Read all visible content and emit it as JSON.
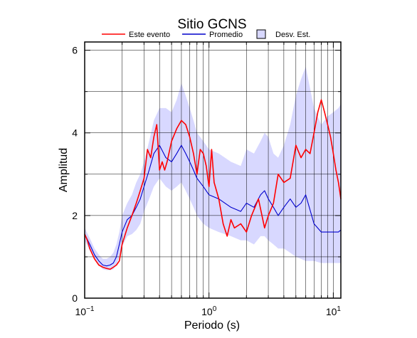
{
  "chart_data": {
    "type": "line",
    "title": "Sitio GCNS",
    "xlabel": "Periodo (s)",
    "ylabel": "Amplitud",
    "x_scale": "log",
    "xlim": [
      0.1,
      11.5
    ],
    "ylim": [
      0,
      6.2
    ],
    "grid": true,
    "legend_position": "top",
    "x_ticks": [
      {
        "value": 0.1,
        "base": "10",
        "exp": "−1"
      },
      {
        "value": 1,
        "base": "10",
        "exp": "0"
      },
      {
        "value": 10,
        "base": "10",
        "exp": "1"
      }
    ],
    "y_ticks": [
      {
        "value": 0,
        "label": "0"
      },
      {
        "value": 2,
        "label": "2"
      },
      {
        "value": 4,
        "label": "4"
      },
      {
        "value": 6,
        "label": "6"
      }
    ],
    "series": [
      {
        "name": "Este evento",
        "color": "#ff0000",
        "x": [
          0.1,
          0.105,
          0.11,
          0.12,
          0.13,
          0.14,
          0.15,
          0.16,
          0.17,
          0.18,
          0.19,
          0.2,
          0.22,
          0.24,
          0.26,
          0.28,
          0.3,
          0.32,
          0.34,
          0.36,
          0.38,
          0.4,
          0.42,
          0.44,
          0.46,
          0.5,
          0.55,
          0.6,
          0.65,
          0.7,
          0.75,
          0.8,
          0.85,
          0.9,
          0.95,
          1.0,
          1.05,
          1.1,
          1.2,
          1.3,
          1.4,
          1.5,
          1.6,
          1.8,
          2.0,
          2.2,
          2.5,
          2.8,
          3.0,
          3.3,
          3.6,
          4.0,
          4.5,
          5.0,
          5.5,
          6.0,
          6.5,
          7.0,
          7.5,
          8.0,
          8.5,
          9.0,
          9.5,
          10.0,
          10.5,
          11.0,
          11.5
        ],
        "y": [
          1.55,
          1.4,
          1.2,
          0.95,
          0.8,
          0.75,
          0.72,
          0.7,
          0.75,
          0.8,
          0.9,
          1.3,
          1.7,
          2.0,
          2.3,
          2.6,
          2.9,
          3.6,
          3.4,
          3.9,
          4.2,
          3.1,
          3.3,
          3.1,
          3.3,
          3.8,
          4.1,
          4.3,
          4.2,
          3.9,
          3.5,
          3.0,
          3.6,
          3.5,
          3.2,
          2.7,
          3.6,
          2.8,
          2.4,
          1.8,
          1.5,
          1.9,
          1.7,
          1.8,
          1.6,
          2.0,
          2.4,
          1.7,
          2.0,
          2.3,
          3.0,
          2.8,
          2.9,
          3.7,
          3.4,
          3.6,
          3.5,
          4.0,
          4.5,
          4.8,
          4.5,
          4.2,
          3.9,
          3.5,
          3.1,
          2.8,
          2.4
        ]
      },
      {
        "name": "Promedio",
        "color": "#0000cc",
        "x": [
          0.1,
          0.11,
          0.12,
          0.13,
          0.14,
          0.15,
          0.16,
          0.17,
          0.18,
          0.19,
          0.2,
          0.22,
          0.24,
          0.26,
          0.28,
          0.3,
          0.33,
          0.36,
          0.4,
          0.45,
          0.5,
          0.55,
          0.6,
          0.65,
          0.7,
          0.75,
          0.8,
          0.9,
          1.0,
          1.2,
          1.5,
          1.8,
          2.0,
          2.3,
          2.6,
          2.8,
          3.0,
          3.3,
          3.6,
          4.0,
          4.5,
          5.0,
          5.5,
          6.0,
          7.0,
          8.0,
          9.0,
          10.0,
          11.0,
          11.5
        ],
        "y": [
          1.55,
          1.3,
          1.05,
          0.9,
          0.8,
          0.78,
          0.8,
          0.85,
          1.0,
          1.3,
          1.6,
          1.9,
          2.0,
          2.2,
          2.4,
          2.7,
          3.1,
          3.5,
          3.7,
          3.4,
          3.3,
          3.5,
          3.7,
          3.5,
          3.3,
          3.1,
          2.9,
          2.7,
          2.5,
          2.4,
          2.2,
          2.1,
          2.3,
          2.2,
          2.5,
          2.6,
          2.4,
          2.2,
          2.0,
          2.2,
          2.4,
          2.2,
          2.3,
          2.5,
          1.8,
          1.6,
          1.6,
          1.6,
          1.6,
          1.65
        ]
      }
    ],
    "band": {
      "name": "Desv. Est.",
      "color": "#d8d8ff",
      "x": [
        0.1,
        0.11,
        0.12,
        0.13,
        0.14,
        0.15,
        0.16,
        0.17,
        0.18,
        0.19,
        0.2,
        0.22,
        0.24,
        0.26,
        0.28,
        0.3,
        0.33,
        0.36,
        0.4,
        0.45,
        0.5,
        0.55,
        0.6,
        0.65,
        0.7,
        0.75,
        0.8,
        0.9,
        1.0,
        1.2,
        1.5,
        1.8,
        2.0,
        2.3,
        2.6,
        2.8,
        3.0,
        3.3,
        3.6,
        4.0,
        4.5,
        5.0,
        5.5,
        6.0,
        7.0,
        8.0,
        9.0,
        10.0,
        11.0,
        11.5
      ],
      "upper": [
        1.7,
        1.45,
        1.2,
        1.05,
        0.95,
        0.95,
        1.0,
        1.1,
        1.3,
        1.6,
        2.0,
        2.3,
        2.5,
        2.8,
        3.0,
        3.3,
        3.8,
        4.3,
        4.6,
        4.6,
        4.5,
        4.8,
        5.2,
        4.9,
        4.6,
        4.3,
        4.0,
        3.8,
        3.6,
        3.5,
        3.3,
        3.2,
        3.6,
        3.5,
        3.8,
        4.0,
        3.9,
        3.5,
        3.4,
        3.7,
        4.2,
        4.9,
        5.3,
        5.6,
        4.6,
        4.2,
        4.4,
        4.5,
        4.6,
        4.7
      ],
      "lower": [
        1.4,
        1.15,
        0.95,
        0.8,
        0.7,
        0.68,
        0.68,
        0.7,
        0.8,
        1.0,
        1.25,
        1.5,
        1.55,
        1.65,
        1.8,
        2.1,
        2.4,
        2.7,
        2.9,
        2.7,
        2.6,
        2.7,
        2.8,
        2.6,
        2.4,
        2.2,
        2.0,
        1.8,
        1.7,
        1.6,
        1.5,
        1.4,
        1.4,
        1.3,
        1.5,
        1.5,
        1.4,
        1.3,
        1.2,
        1.2,
        1.1,
        1.0,
        0.95,
        0.9,
        0.9,
        0.85,
        0.85,
        0.85,
        0.85,
        0.85
      ]
    }
  }
}
